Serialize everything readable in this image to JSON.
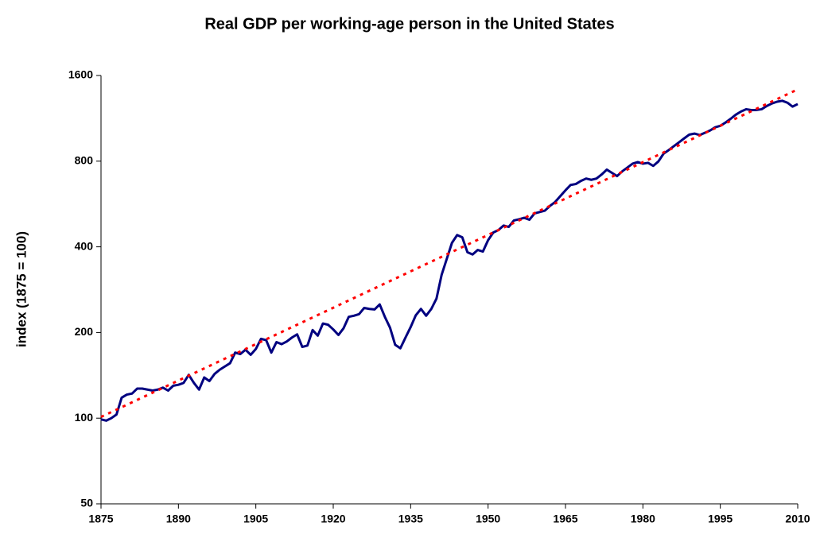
{
  "chart_data": {
    "type": "line",
    "title": "Real GDP per working-age person in the United States",
    "y_label": "index (1875 = 100)",
    "log_scale_y": true,
    "xlim": [
      1875,
      2010
    ],
    "xticks": [
      1875,
      1890,
      1905,
      1920,
      1935,
      1950,
      1965,
      1980,
      1995,
      2010
    ],
    "ylim": [
      50,
      1600
    ],
    "yticks": [
      50,
      100,
      200,
      400,
      800,
      1600
    ],
    "series": [
      {
        "color": "#000080",
        "line_style": "solid",
        "x": [
          1875,
          1876,
          1877,
          1878,
          1879,
          1880,
          1881,
          1882,
          1883,
          1884,
          1885,
          1886,
          1887,
          1888,
          1889,
          1890,
          1891,
          1892,
          1893,
          1894,
          1895,
          1896,
          1897,
          1898,
          1899,
          1900,
          1901,
          1902,
          1903,
          1904,
          1905,
          1906,
          1907,
          1908,
          1909,
          1910,
          1911,
          1912,
          1913,
          1914,
          1915,
          1916,
          1917,
          1918,
          1919,
          1920,
          1921,
          1922,
          1923,
          1924,
          1925,
          1926,
          1927,
          1928,
          1929,
          1930,
          1931,
          1932,
          1933,
          1934,
          1935,
          1936,
          1937,
          1938,
          1939,
          1940,
          1941,
          1942,
          1943,
          1944,
          1945,
          1946,
          1947,
          1948,
          1949,
          1950,
          1951,
          1952,
          1953,
          1954,
          1955,
          1956,
          1957,
          1958,
          1959,
          1960,
          1961,
          1962,
          1963,
          1964,
          1965,
          1966,
          1967,
          1968,
          1969,
          1970,
          1971,
          1972,
          1973,
          1974,
          1975,
          1976,
          1977,
          1978,
          1979,
          1980,
          1981,
          1982,
          1983,
          1984,
          1985,
          1986,
          1987,
          1988,
          1989,
          1990,
          1991,
          1992,
          1993,
          1994,
          1995,
          1996,
          1997,
          1998,
          1999,
          2000,
          2001,
          2002,
          2003,
          2004,
          2005,
          2006,
          2007,
          2008,
          2009,
          2010
        ],
        "values": [
          99,
          98,
          100,
          103,
          118,
          121,
          122,
          127,
          127,
          126,
          125,
          126,
          128,
          125,
          130,
          131,
          133,
          142,
          133,
          126,
          139,
          135,
          143,
          148,
          152,
          156,
          170,
          168,
          174,
          167,
          175,
          190,
          188,
          170,
          185,
          182,
          186,
          192,
          197,
          178,
          180,
          204,
          195,
          215,
          213,
          205,
          196,
          207,
          227,
          229,
          232,
          244,
          242,
          241,
          251,
          227,
          208,
          181,
          176,
          192,
          209,
          230,
          242,
          229,
          242,
          263,
          319,
          363,
          413,
          440,
          432,
          383,
          376,
          390,
          385,
          422,
          449,
          458,
          475,
          470,
          495,
          500,
          506,
          498,
          524,
          530,
          536,
          557,
          575,
          603,
          632,
          660,
          665,
          682,
          695,
          688,
          695,
          718,
          747,
          728,
          709,
          737,
          760,
          784,
          794,
          784,
          789,
          770,
          798,
          850,
          875,
          903,
          932,
          962,
          992,
          1000,
          988,
          1006,
          1025,
          1052,
          1065,
          1093,
          1127,
          1165,
          1195,
          1218,
          1210,
          1210,
          1218,
          1250,
          1276,
          1294,
          1304,
          1284,
          1244,
          1270
        ]
      },
      {
        "color": "#ff0000",
        "line_style": "dotted",
        "x": [
          1875,
          2010
        ],
        "values": [
          101,
          1430
        ]
      }
    ]
  }
}
